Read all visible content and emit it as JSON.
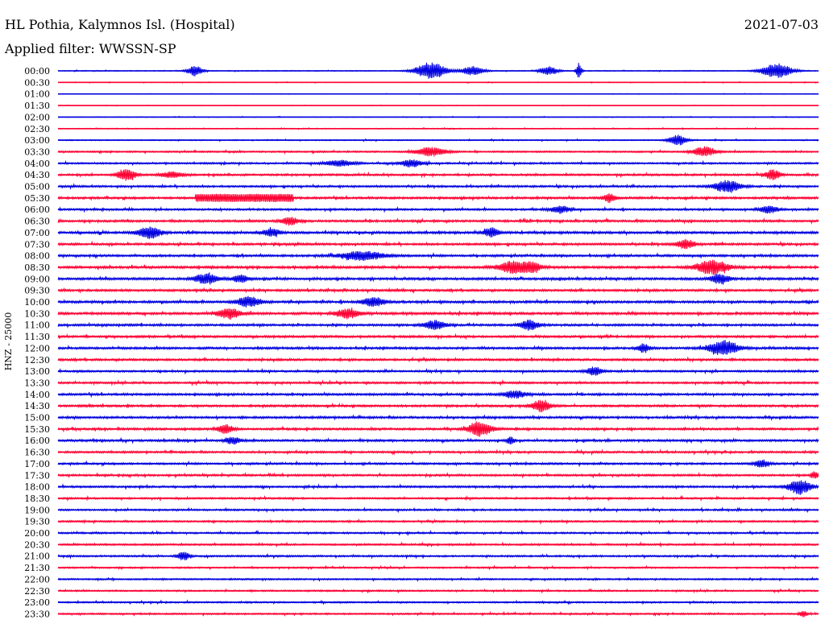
{
  "header": {
    "station": "HL Pothia, Kalymnos Isl. (Hospital)",
    "date": "2021-07-03",
    "filter": "Applied filter: WWSSN-SP"
  },
  "side_label": "HNZ - 25000",
  "colors": {
    "even_trace": "#0000e0",
    "odd_trace": "#ff0033",
    "text": "#000000",
    "background": "#ffffff"
  },
  "chart_data": {
    "type": "line",
    "ylabel": "HNZ - 25000",
    "rows": [
      "00:00",
      "00:30",
      "01:00",
      "01:30",
      "02:00",
      "02:30",
      "03:00",
      "03:30",
      "04:00",
      "04:30",
      "05:00",
      "05:30",
      "06:00",
      "06:30",
      "07:00",
      "07:30",
      "08:00",
      "08:30",
      "09:00",
      "09:30",
      "10:00",
      "10:30",
      "11:00",
      "11:30",
      "12:00",
      "12:30",
      "13:00",
      "13:30",
      "14:00",
      "14:30",
      "15:00",
      "15:30",
      "16:00",
      "16:30",
      "17:00",
      "17:30",
      "18:00",
      "18:30",
      "19:00",
      "19:30",
      "20:00",
      "20:30",
      "21:00",
      "21:30",
      "22:00",
      "22:30",
      "23:00",
      "23:30"
    ],
    "noise_level": [
      0.2,
      0.15,
      0.1,
      0.12,
      0.15,
      0.2,
      0.25,
      0.35,
      0.4,
      0.45,
      0.45,
      0.5,
      0.45,
      0.5,
      0.55,
      0.5,
      0.5,
      0.55,
      0.55,
      0.5,
      0.55,
      0.55,
      0.5,
      0.5,
      0.5,
      0.5,
      0.45,
      0.45,
      0.5,
      0.5,
      0.5,
      0.5,
      0.5,
      0.45,
      0.45,
      0.45,
      0.45,
      0.4,
      0.4,
      0.4,
      0.4,
      0.4,
      0.4,
      0.35,
      0.35,
      0.35,
      0.35,
      0.35
    ],
    "events": [
      {
        "row": 0,
        "x": 0.18,
        "amp": 3.5,
        "dur": 0.01
      },
      {
        "row": 0,
        "x": 0.49,
        "amp": 6.0,
        "dur": 0.02
      },
      {
        "row": 0,
        "x": 0.545,
        "amp": 3.0,
        "dur": 0.015
      },
      {
        "row": 0,
        "x": 0.645,
        "amp": 3.0,
        "dur": 0.012
      },
      {
        "row": 0,
        "x": 0.685,
        "amp": 5.0,
        "dur": 0.004
      },
      {
        "row": 0,
        "x": 0.945,
        "amp": 5.0,
        "dur": 0.02
      },
      {
        "row": 6,
        "x": 0.815,
        "amp": 3.5,
        "dur": 0.012
      },
      {
        "row": 7,
        "x": 0.49,
        "amp": 3.0,
        "dur": 0.02
      },
      {
        "row": 7,
        "x": 0.85,
        "amp": 3.5,
        "dur": 0.015
      },
      {
        "row": 8,
        "x": 0.37,
        "amp": 2.0,
        "dur": 0.02
      },
      {
        "row": 8,
        "x": 0.465,
        "amp": 2.5,
        "dur": 0.015
      },
      {
        "row": 9,
        "x": 0.09,
        "amp": 4.0,
        "dur": 0.012
      },
      {
        "row": 9,
        "x": 0.15,
        "amp": 2.0,
        "dur": 0.015
      },
      {
        "row": 9,
        "x": 0.94,
        "amp": 3.5,
        "dur": 0.01
      },
      {
        "row": 10,
        "x": 0.88,
        "amp": 4.0,
        "dur": 0.018
      },
      {
        "row": 11,
        "x": 0.245,
        "amp": 2.8,
        "dur": 0.065,
        "block": true
      },
      {
        "row": 11,
        "x": 0.725,
        "amp": 3.0,
        "dur": 0.008
      },
      {
        "row": 12,
        "x": 0.66,
        "amp": 2.5,
        "dur": 0.012
      },
      {
        "row": 12,
        "x": 0.935,
        "amp": 2.5,
        "dur": 0.012
      },
      {
        "row": 13,
        "x": 0.305,
        "amp": 2.5,
        "dur": 0.012
      },
      {
        "row": 14,
        "x": 0.12,
        "amp": 4.0,
        "dur": 0.015
      },
      {
        "row": 14,
        "x": 0.28,
        "amp": 2.5,
        "dur": 0.012
      },
      {
        "row": 14,
        "x": 0.57,
        "amp": 3.0,
        "dur": 0.01
      },
      {
        "row": 15,
        "x": 0.825,
        "amp": 3.0,
        "dur": 0.012
      },
      {
        "row": 16,
        "x": 0.4,
        "amp": 3.0,
        "dur": 0.03
      },
      {
        "row": 17,
        "x": 0.6,
        "amp": 4.5,
        "dur": 0.02
      },
      {
        "row": 17,
        "x": 0.625,
        "amp": 3.0,
        "dur": 0.01
      },
      {
        "row": 17,
        "x": 0.86,
        "amp": 5.0,
        "dur": 0.02
      },
      {
        "row": 18,
        "x": 0.195,
        "amp": 3.5,
        "dur": 0.015
      },
      {
        "row": 18,
        "x": 0.24,
        "amp": 2.5,
        "dur": 0.01
      },
      {
        "row": 18,
        "x": 0.87,
        "amp": 3.5,
        "dur": 0.012
      },
      {
        "row": 20,
        "x": 0.25,
        "amp": 3.5,
        "dur": 0.015
      },
      {
        "row": 20,
        "x": 0.415,
        "amp": 3.0,
        "dur": 0.015
      },
      {
        "row": 21,
        "x": 0.225,
        "amp": 3.5,
        "dur": 0.015
      },
      {
        "row": 21,
        "x": 0.38,
        "amp": 3.5,
        "dur": 0.015
      },
      {
        "row": 22,
        "x": 0.495,
        "amp": 3.0,
        "dur": 0.015
      },
      {
        "row": 22,
        "x": 0.62,
        "amp": 3.5,
        "dur": 0.012
      },
      {
        "row": 24,
        "x": 0.77,
        "amp": 3.0,
        "dur": 0.008
      },
      {
        "row": 24,
        "x": 0.875,
        "amp": 5.0,
        "dur": 0.02
      },
      {
        "row": 26,
        "x": 0.705,
        "amp": 3.0,
        "dur": 0.01
      },
      {
        "row": 28,
        "x": 0.6,
        "amp": 2.5,
        "dur": 0.015
      },
      {
        "row": 29,
        "x": 0.635,
        "amp": 4.0,
        "dur": 0.012
      },
      {
        "row": 31,
        "x": 0.22,
        "amp": 3.0,
        "dur": 0.01
      },
      {
        "row": 31,
        "x": 0.555,
        "amp": 5.0,
        "dur": 0.015
      },
      {
        "row": 32,
        "x": 0.23,
        "amp": 2.5,
        "dur": 0.01
      },
      {
        "row": 32,
        "x": 0.595,
        "amp": 2.5,
        "dur": 0.005
      },
      {
        "row": 34,
        "x": 0.925,
        "amp": 2.5,
        "dur": 0.01
      },
      {
        "row": 35,
        "x": 0.995,
        "amp": 2.5,
        "dur": 0.005
      },
      {
        "row": 36,
        "x": 0.975,
        "amp": 5.0,
        "dur": 0.015
      },
      {
        "row": 42,
        "x": 0.165,
        "amp": 3.0,
        "dur": 0.008
      },
      {
        "row": 47,
        "x": 0.98,
        "amp": 2.5,
        "dur": 0.005
      }
    ]
  }
}
